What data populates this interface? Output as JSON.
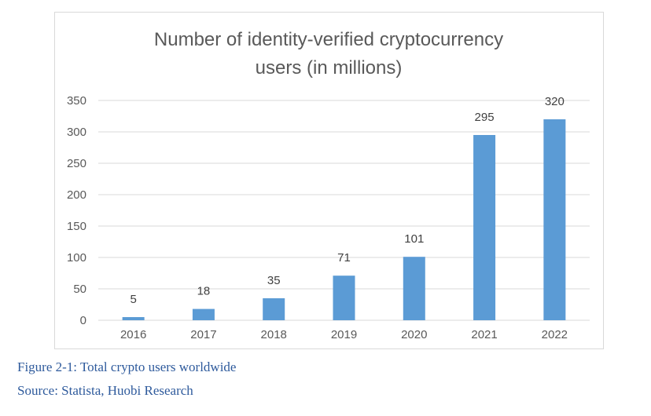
{
  "chart_data": {
    "type": "bar",
    "title_lines": [
      "Number of identity-verified cryptocurrency",
      "users (in millions)"
    ],
    "categories": [
      "2016",
      "2017",
      "2018",
      "2019",
      "2020",
      "2021",
      "2022"
    ],
    "values": [
      5,
      18,
      35,
      71,
      101,
      295,
      320
    ],
    "data_labels": [
      "5",
      "18",
      "35",
      "71",
      "101",
      "295",
      "320"
    ],
    "y_ticks": [
      0,
      50,
      100,
      150,
      200,
      250,
      300,
      350
    ],
    "ylim": [
      0,
      350
    ],
    "xlabel": "",
    "ylabel": "",
    "grid": true,
    "legend": "none",
    "bar_color": "#5b9bd5",
    "grid_color": "#d9d9d9"
  },
  "caption": {
    "figure": "Figure 2-1:  Total crypto users worldwide",
    "source": "Source: Statista, Huobi Research"
  }
}
